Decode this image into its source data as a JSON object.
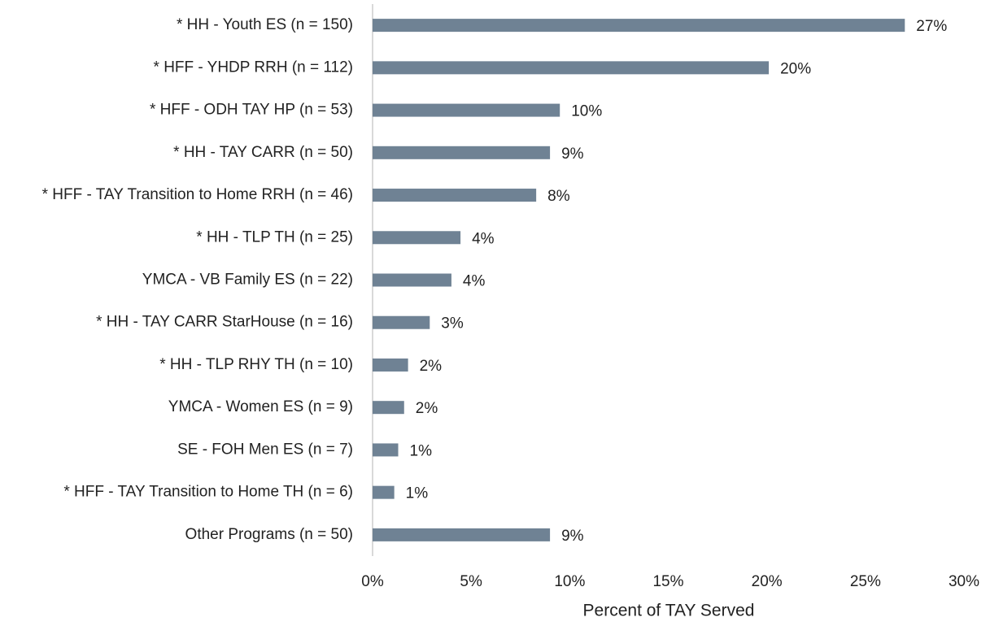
{
  "chart_data": {
    "type": "bar",
    "orientation": "horizontal",
    "x_label": "Percent of TAY Served",
    "categories": [
      "* HH - Youth ES (n = 150)",
      "* HFF - YHDP RRH (n = 112)",
      "* HFF - ODH TAY HP (n = 53)",
      "* HH - TAY CARR (n = 50)",
      "* HFF - TAY Transition to Home RRH (n = 46)",
      "* HH - TLP TH (n = 25)",
      "YMCA - VB Family ES (n = 22)",
      "* HH - TAY CARR StarHouse (n = 16)",
      "* HH - TLP RHY TH (n = 10)",
      "YMCA - Women ES (n = 9)",
      "SE - FOH Men ES (n = 7)",
      "* HFF - TAY Transition to Home TH (n = 6)",
      "Other Programs (n = 50)"
    ],
    "values": [
      27.0,
      20.1,
      9.5,
      9.0,
      8.3,
      4.46,
      4.0,
      2.9,
      1.8,
      1.6,
      1.3,
      1.1,
      9.0
    ],
    "value_labels": [
      "27%",
      "20%",
      "10%",
      "9%",
      "8%",
      "4%",
      "4%",
      "3%",
      "2%",
      "2%",
      "1%",
      "1%",
      "9%"
    ],
    "color": "#6f8294",
    "xlim": [
      0,
      30
    ],
    "xticks": [
      {
        "value": 0,
        "label": "0%"
      },
      {
        "value": 5,
        "label": "5%"
      },
      {
        "value": 10,
        "label": "10%"
      },
      {
        "value": 15,
        "label": "15%"
      },
      {
        "value": 20,
        "label": "20%"
      },
      {
        "value": 25,
        "label": "25%"
      },
      {
        "value": 30,
        "label": "30%"
      }
    ],
    "grid": false
  }
}
